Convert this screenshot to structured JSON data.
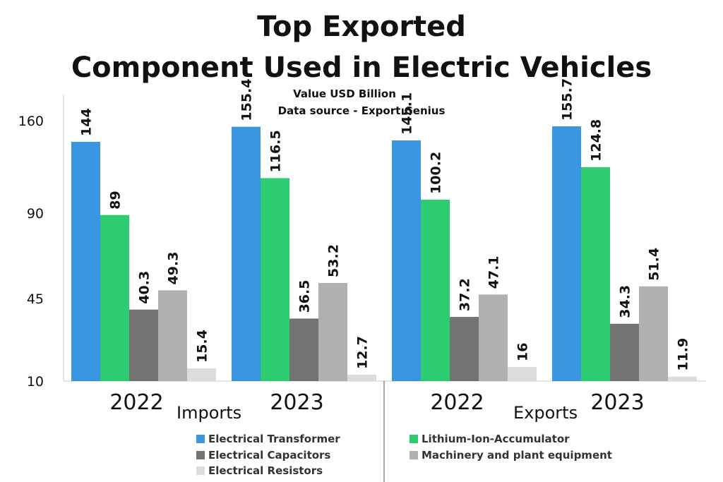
{
  "title_line1": "Top Exported",
  "title_line2": "Component Used in Electric Vehicles",
  "subtitle_line1": "Value USD Billion",
  "subtitle_line2": "Data source - Export Genius",
  "groups": {
    "imports": "Imports",
    "exports": "Exports"
  },
  "chart_data": {
    "type": "bar",
    "title": "Top Exported Component Used in Electric Vehicles",
    "subtitle": "Value USD Billion — Data source - Export Genius",
    "y_ticks": [
      10,
      45,
      90,
      160
    ],
    "y_scale": "piecewise (ticks 10, 45, 90, 160 unevenly spaced)",
    "grid": false,
    "legend_position": "bottom",
    "categories": [
      "2022",
      "2023",
      "2022",
      "2023"
    ],
    "category_groups": [
      "Imports",
      "Imports",
      "Exports",
      "Exports"
    ],
    "series": [
      {
        "name": "Electrical Transformer",
        "color": "#3a96e0",
        "values": [
          144,
          155.4,
          145.1,
          155.7
        ],
        "labels": [
          "144",
          "155.4",
          "145.1",
          "155.7"
        ]
      },
      {
        "name": "Lithium-Ion-Accumulator",
        "color": "#2ecc71",
        "values": [
          89,
          116.5,
          100.2,
          124.8
        ],
        "labels": [
          "89",
          "116.5",
          "100.2",
          "124.8"
        ]
      },
      {
        "name": "Electrical Capacitors",
        "color": "#737373",
        "values": [
          40.3,
          36.5,
          37.2,
          34.3
        ],
        "labels": [
          "40.3",
          "36.5",
          "37.2",
          "34.3"
        ]
      },
      {
        "name": "Machinery and plant equipment",
        "color": "#b0b0b0",
        "values": [
          49.3,
          53.2,
          47.1,
          51.4
        ],
        "labels": [
          "49.3",
          "53.2",
          "47.1",
          "51.4"
        ]
      },
      {
        "name": "Electrical Resistors",
        "color": "#dcdcdc",
        "values": [
          15.4,
          12.7,
          16,
          11.9
        ],
        "labels": [
          "15.4",
          "12.7",
          "16",
          "11.9"
        ]
      }
    ]
  },
  "legend": [
    {
      "label": "Electrical Transformer",
      "color": "#3a96e0"
    },
    {
      "label": "Lithium-Ion-Accumulator",
      "color": "#2ecc71"
    },
    {
      "label": "Electrical Capacitors",
      "color": "#737373"
    },
    {
      "label": "Machinery and plant equipment",
      "color": "#b0b0b0"
    },
    {
      "label": "Electrical Resistors",
      "color": "#dcdcdc"
    }
  ]
}
